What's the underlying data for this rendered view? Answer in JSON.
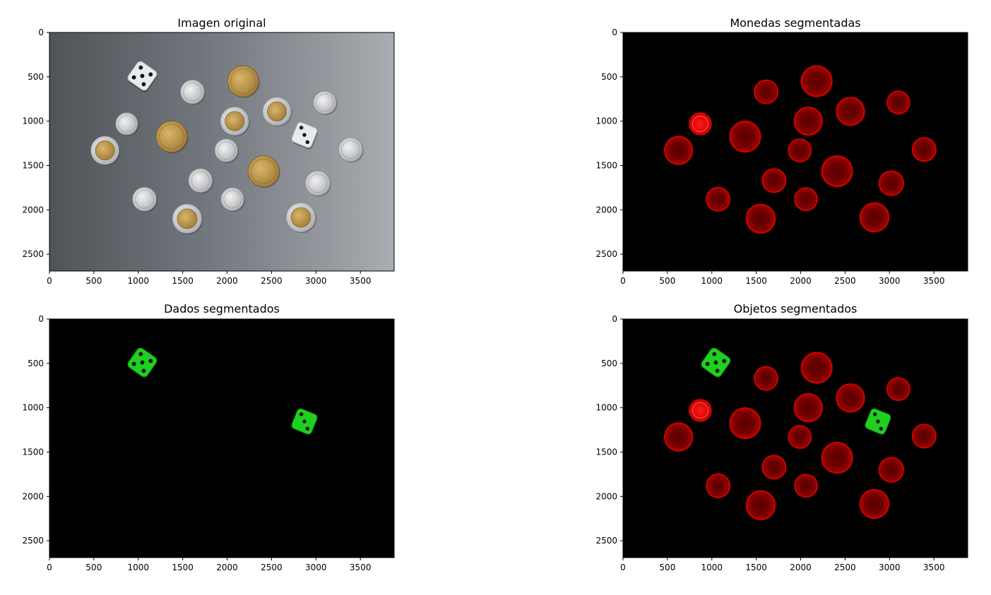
{
  "chart_data": [
    {
      "type": "image",
      "title": "Imagen original",
      "mode": "original",
      "xlim": [
        0,
        3880
      ],
      "ylim": [
        2690,
        0
      ],
      "xticks": [
        0,
        500,
        1000,
        1500,
        2000,
        2500,
        3000,
        3500
      ],
      "yticks": [
        0,
        500,
        1000,
        1500,
        2000,
        2500
      ]
    },
    {
      "type": "image",
      "title": "Monedas segmentadas",
      "mode": "coins",
      "xlim": [
        0,
        3880
      ],
      "ylim": [
        2690,
        0
      ],
      "xticks": [
        0,
        500,
        1000,
        1500,
        2000,
        2500,
        3000,
        3500
      ],
      "yticks": [
        0,
        500,
        1000,
        1500,
        2000,
        2500
      ]
    },
    {
      "type": "image",
      "title": "Dados segmentados",
      "mode": "dice",
      "xlim": [
        0,
        3880
      ],
      "ylim": [
        2690,
        0
      ],
      "xticks": [
        0,
        500,
        1000,
        1500,
        2000,
        2500,
        3000,
        3500
      ],
      "yticks": [
        0,
        500,
        1000,
        1500,
        2000,
        2500
      ]
    },
    {
      "type": "image",
      "title": "Objetos segmentados",
      "mode": "both",
      "xlim": [
        0,
        3880
      ],
      "ylim": [
        2690,
        0
      ],
      "xticks": [
        0,
        500,
        1000,
        1500,
        2000,
        2500,
        3000,
        3500
      ],
      "yticks": [
        0,
        500,
        1000,
        1500,
        2000,
        2500
      ]
    }
  ],
  "coins": [
    {
      "x": 870,
      "y": 1030,
      "r": 125,
      "type": "silver-small"
    },
    {
      "x": 625,
      "y": 1330,
      "r": 160,
      "type": "bimetal"
    },
    {
      "x": 1070,
      "y": 1880,
      "r": 135,
      "type": "silver-small"
    },
    {
      "x": 1375,
      "y": 1175,
      "r": 175,
      "type": "gold"
    },
    {
      "x": 1610,
      "y": 670,
      "r": 135,
      "type": "silver-small"
    },
    {
      "x": 1550,
      "y": 2100,
      "r": 165,
      "type": "bimetal"
    },
    {
      "x": 1700,
      "y": 1670,
      "r": 135,
      "type": "silver-large"
    },
    {
      "x": 1990,
      "y": 1330,
      "r": 130,
      "type": "silver-small"
    },
    {
      "x": 2060,
      "y": 1880,
      "r": 130,
      "type": "silver-small"
    },
    {
      "x": 2180,
      "y": 550,
      "r": 175,
      "type": "gold"
    },
    {
      "x": 2085,
      "y": 1000,
      "r": 160,
      "type": "bimetal"
    },
    {
      "x": 2410,
      "y": 1565,
      "r": 175,
      "type": "gold"
    },
    {
      "x": 2560,
      "y": 890,
      "r": 160,
      "type": "bimetal"
    },
    {
      "x": 2830,
      "y": 2085,
      "r": 165,
      "type": "bimetal"
    },
    {
      "x": 3020,
      "y": 1700,
      "r": 140,
      "type": "silver-large"
    },
    {
      "x": 3100,
      "y": 790,
      "r": 130,
      "type": "silver-small"
    },
    {
      "x": 3390,
      "y": 1320,
      "r": 135,
      "type": "silver-small"
    }
  ],
  "dice": [
    {
      "x": 1045,
      "y": 490,
      "s": 260,
      "rot": 35,
      "pips": 5
    },
    {
      "x": 2870,
      "y": 1155,
      "s": 240,
      "rot": 22,
      "pips": 3
    }
  ]
}
